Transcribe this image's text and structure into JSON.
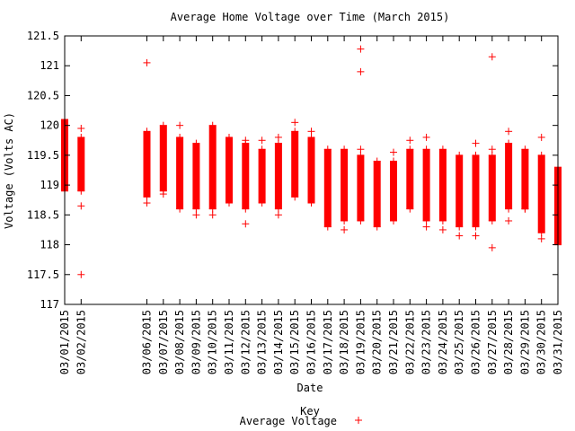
{
  "chart_data": {
    "type": "scatter",
    "title": "Average Home Voltage over Time (March 2015)",
    "xlabel": "Date",
    "ylabel": "Voltage (Volts AC)",
    "ylim": [
      117,
      121.5
    ],
    "y_ticks": [
      "121.5",
      "121",
      "120.5",
      "120",
      "119.5",
      "119",
      "118.5",
      "118",
      "117.5",
      "117"
    ],
    "legend": {
      "title": "Key",
      "entries": [
        "Average Voltage"
      ],
      "placement": "bottom-center"
    },
    "marker": "+",
    "color": "#ff0000",
    "grid": false,
    "categories": [
      "03/01/2015",
      "03/02/2015",
      "03/06/2015",
      "03/07/2015",
      "03/08/2015",
      "03/09/2015",
      "03/10/2015",
      "03/11/2015",
      "03/12/2015",
      "03/13/2015",
      "03/14/2015",
      "03/15/2015",
      "03/16/2015",
      "03/17/2015",
      "03/18/2015",
      "03/19/2015",
      "03/20/2015",
      "03/21/2015",
      "03/22/2015",
      "03/23/2015",
      "03/24/2015",
      "03/25/2015",
      "03/26/2015",
      "03/27/2015",
      "03/28/2015",
      "03/29/2015",
      "03/30/2015",
      "03/31/2015"
    ],
    "days": [
      1,
      2,
      6,
      7,
      8,
      9,
      10,
      11,
      12,
      13,
      14,
      15,
      16,
      17,
      18,
      19,
      20,
      21,
      22,
      23,
      24,
      25,
      26,
      27,
      28,
      29,
      30,
      31
    ],
    "ranges": [
      [
        118.9,
        120.1
      ],
      [
        118.9,
        119.8
      ],
      [
        118.8,
        119.9
      ],
      [
        118.9,
        120.0
      ],
      [
        118.6,
        119.8
      ],
      [
        118.6,
        119.7
      ],
      [
        118.6,
        120.0
      ],
      [
        118.7,
        119.8
      ],
      [
        118.6,
        119.7
      ],
      [
        118.7,
        119.6
      ],
      [
        118.6,
        119.7
      ],
      [
        118.8,
        119.9
      ],
      [
        118.7,
        119.8
      ],
      [
        118.3,
        119.6
      ],
      [
        118.4,
        119.6
      ],
      [
        118.4,
        119.5
      ],
      [
        118.3,
        119.4
      ],
      [
        118.4,
        119.4
      ],
      [
        118.6,
        119.6
      ],
      [
        118.4,
        119.6
      ],
      [
        118.4,
        119.6
      ],
      [
        118.3,
        119.5
      ],
      [
        118.3,
        119.5
      ],
      [
        118.4,
        119.5
      ],
      [
        118.6,
        119.7
      ],
      [
        118.6,
        119.6
      ],
      [
        118.2,
        119.5
      ],
      [
        118.0,
        119.3
      ]
    ],
    "outliers": [
      {
        "day": 2,
        "y": 117.5
      },
      {
        "day": 2,
        "y": 118.65
      },
      {
        "day": 2,
        "y": 119.95
      },
      {
        "day": 6,
        "y": 121.05
      },
      {
        "day": 6,
        "y": 118.7
      },
      {
        "day": 7,
        "y": 118.85
      },
      {
        "day": 8,
        "y": 120.0
      },
      {
        "day": 9,
        "y": 118.5
      },
      {
        "day": 10,
        "y": 118.5
      },
      {
        "day": 12,
        "y": 118.35
      },
      {
        "day": 12,
        "y": 119.75
      },
      {
        "day": 13,
        "y": 119.75
      },
      {
        "day": 14,
        "y": 119.8
      },
      {
        "day": 14,
        "y": 118.5
      },
      {
        "day": 15,
        "y": 120.05
      },
      {
        "day": 16,
        "y": 119.9
      },
      {
        "day": 18,
        "y": 118.25
      },
      {
        "day": 19,
        "y": 121.28
      },
      {
        "day": 19,
        "y": 120.9
      },
      {
        "day": 19,
        "y": 119.6
      },
      {
        "day": 21,
        "y": 119.55
      },
      {
        "day": 22,
        "y": 119.75
      },
      {
        "day": 23,
        "y": 119.8
      },
      {
        "day": 23,
        "y": 118.3
      },
      {
        "day": 24,
        "y": 118.25
      },
      {
        "day": 25,
        "y": 118.15
      },
      {
        "day": 26,
        "y": 119.7
      },
      {
        "day": 26,
        "y": 118.15
      },
      {
        "day": 27,
        "y": 121.15
      },
      {
        "day": 27,
        "y": 117.95
      },
      {
        "day": 27,
        "y": 119.6
      },
      {
        "day": 28,
        "y": 119.9
      },
      {
        "day": 28,
        "y": 118.4
      },
      {
        "day": 29,
        "y": 118.6
      },
      {
        "day": 30,
        "y": 119.8
      },
      {
        "day": 30,
        "y": 118.1
      },
      {
        "day": 31,
        "y": 118.0
      }
    ]
  }
}
